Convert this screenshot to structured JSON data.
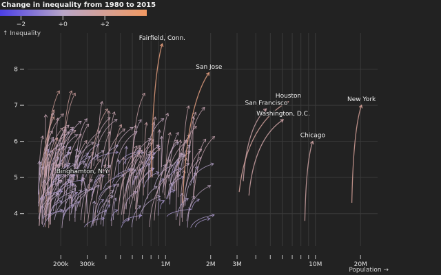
{
  "chart_data": {
    "type": "line",
    "title": "Change in inequality from 1980 to 2015",
    "ylabel": "↑ Inequality",
    "xlabel": "Population →",
    "x_scale": "log",
    "xlim": [
      120000,
      26000000
    ],
    "ylim": [
      3.1,
      9.0
    ],
    "grid": true,
    "legend": {
      "placement": "top-left",
      "color_domain": [
        -3,
        4
      ],
      "color_low": "#4b3fe6",
      "color_mid": "#b8a6c8",
      "color_high": "#f29a63",
      "ticks": [
        "−2",
        "+0",
        "+2"
      ],
      "tick_values": [
        -2,
        0,
        2
      ]
    },
    "x_ticks": [
      {
        "value": 200000,
        "label": "200k"
      },
      {
        "value": 300000,
        "label": "300k"
      },
      {
        "value": 1000000,
        "label": "1M"
      },
      {
        "value": 2000000,
        "label": "2M"
      },
      {
        "value": 3000000,
        "label": "3M"
      },
      {
        "value": 10000000,
        "label": "10M"
      },
      {
        "value": 20000000,
        "label": "20M"
      }
    ],
    "y_ticks": [
      4,
      5,
      6,
      7,
      8
    ],
    "labeled_metros": [
      {
        "name": "Fairfield, Conn.",
        "x1980": 800000,
        "y1980": 5.0,
        "x2015": 950000,
        "y2015": 8.7
      },
      {
        "name": "San Jose",
        "x1980": 1300000,
        "y1980": 4.3,
        "x2015": 1950000,
        "y2015": 7.9
      },
      {
        "name": "San Francisco",
        "x1980": 3300000,
        "y1980": 4.9,
        "x2015": 4700000,
        "y2015": 6.9
      },
      {
        "name": "Houston",
        "x1980": 3100000,
        "y1980": 4.6,
        "x2015": 6600000,
        "y2015": 7.1
      },
      {
        "name": "Washington, D.C.",
        "x1980": 3600000,
        "y1980": 4.5,
        "x2015": 6100000,
        "y2015": 6.6
      },
      {
        "name": "New York",
        "x1980": 17500000,
        "y1980": 4.3,
        "x2015": 20300000,
        "y2015": 7.0
      },
      {
        "name": "Chicago",
        "x1980": 8500000,
        "y1980": 3.8,
        "x2015": 9600000,
        "y2015": 6.0
      },
      {
        "name": "Binghamton, N.Y.",
        "x1980": 300000,
        "y1980": 4.0,
        "x2015": 280000,
        "y2015": 5.0
      }
    ]
  }
}
